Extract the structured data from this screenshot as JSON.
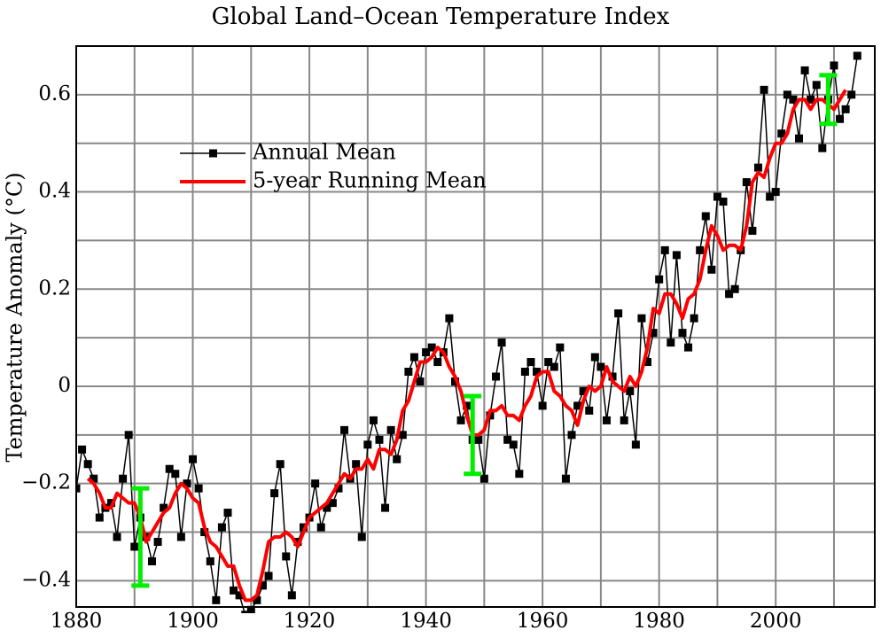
{
  "chart_data": {
    "type": "line",
    "title": "Global Land–Ocean Temperature Index",
    "ylabel": "Temperature Anomaly (°C)",
    "xlim": [
      1880,
      2017
    ],
    "ylim": [
      -0.454,
      0.7
    ],
    "xticks": [
      1880,
      {
        "value": 1890,
        "label": null
      },
      1900,
      {
        "value": 1910,
        "label": null
      },
      1920,
      {
        "value": 1930,
        "label": null
      },
      1940,
      {
        "value": 1950,
        "label": null
      },
      1960,
      {
        "value": 1970,
        "label": null
      },
      1980,
      {
        "value": 1990,
        "label": null
      },
      2000,
      {
        "value": 2010,
        "label": null
      }
    ],
    "yticks": [
      {
        "value": -0.4,
        "label": "−0.4"
      },
      {
        "value": -0.3,
        "label": null
      },
      {
        "value": -0.2,
        "label": "−0.2"
      },
      {
        "value": -0.1,
        "label": null
      },
      0,
      {
        "value": 0.1,
        "label": null
      },
      0.2,
      {
        "value": 0.3,
        "label": null
      },
      0.4,
      {
        "value": 0.5,
        "label": null
      },
      0.6
    ],
    "grid": true,
    "legend": "upper left",
    "series": [
      {
        "name": "Annual Mean",
        "color": "#000000",
        "marker": "square",
        "x": [
          1880,
          1881,
          1882,
          1883,
          1884,
          1885,
          1886,
          1887,
          1888,
          1889,
          1890,
          1891,
          1892,
          1893,
          1894,
          1895,
          1896,
          1897,
          1898,
          1899,
          1900,
          1901,
          1902,
          1903,
          1904,
          1905,
          1906,
          1907,
          1908,
          1909,
          1910,
          1911,
          1912,
          1913,
          1914,
          1915,
          1916,
          1917,
          1918,
          1919,
          1920,
          1921,
          1922,
          1923,
          1924,
          1925,
          1926,
          1927,
          1928,
          1929,
          1930,
          1931,
          1932,
          1933,
          1934,
          1935,
          1936,
          1937,
          1938,
          1939,
          1940,
          1941,
          1942,
          1943,
          1944,
          1945,
          1946,
          1947,
          1948,
          1949,
          1950,
          1951,
          1952,
          1953,
          1954,
          1955,
          1956,
          1957,
          1958,
          1959,
          1960,
          1961,
          1962,
          1963,
          1964,
          1965,
          1966,
          1967,
          1968,
          1969,
          1970,
          1971,
          1972,
          1973,
          1974,
          1975,
          1976,
          1977,
          1978,
          1979,
          1980,
          1981,
          1982,
          1983,
          1984,
          1985,
          1986,
          1987,
          1988,
          1989,
          1990,
          1991,
          1992,
          1993,
          1994,
          1995,
          1996,
          1997,
          1998,
          1999,
          2000,
          2001,
          2002,
          2003,
          2004,
          2005,
          2006,
          2007,
          2008,
          2009,
          2010,
          2011,
          2012,
          2013,
          2014
        ],
        "values": [
          -0.21,
          -0.13,
          -0.16,
          -0.19,
          -0.27,
          -0.25,
          -0.24,
          -0.31,
          -0.19,
          -0.1,
          -0.33,
          -0.27,
          -0.31,
          -0.36,
          -0.32,
          -0.25,
          -0.17,
          -0.18,
          -0.31,
          -0.2,
          -0.15,
          -0.21,
          -0.3,
          -0.36,
          -0.44,
          -0.29,
          -0.26,
          -0.42,
          -0.43,
          -0.47,
          -0.46,
          -0.44,
          -0.41,
          -0.39,
          -0.22,
          -0.16,
          -0.35,
          -0.43,
          -0.32,
          -0.29,
          -0.27,
          -0.2,
          -0.29,
          -0.25,
          -0.24,
          -0.21,
          -0.09,
          -0.19,
          -0.16,
          -0.31,
          -0.12,
          -0.07,
          -0.11,
          -0.25,
          -0.09,
          -0.15,
          -0.1,
          0.03,
          0.06,
          0.01,
          0.07,
          0.08,
          0.05,
          0.07,
          0.14,
          0.01,
          -0.07,
          -0.04,
          -0.11,
          -0.11,
          -0.19,
          -0.06,
          0.02,
          0.09,
          -0.11,
          -0.12,
          -0.18,
          0.03,
          0.05,
          0.03,
          -0.04,
          0.05,
          0.04,
          0.08,
          -0.19,
          -0.1,
          -0.04,
          -0.01,
          -0.05,
          0.06,
          0.04,
          -0.07,
          0.02,
          0.15,
          -0.07,
          -0.01,
          -0.12,
          0.14,
          0.05,
          0.11,
          0.22,
          0.28,
          0.09,
          0.27,
          0.11,
          0.08,
          0.14,
          0.28,
          0.35,
          0.24,
          0.39,
          0.38,
          0.19,
          0.2,
          0.28,
          0.42,
          0.32,
          0.45,
          0.61,
          0.39,
          0.4,
          0.52,
          0.6,
          0.59,
          0.51,
          0.65,
          0.59,
          0.62,
          0.49,
          0.59,
          0.66,
          0.55,
          0.57,
          0.6,
          0.68
        ]
      },
      {
        "name": "5-year Running Mean",
        "color": "#ff0000",
        "marker": "none",
        "x": [
          1882,
          1883,
          1884,
          1885,
          1886,
          1887,
          1888,
          1889,
          1890,
          1891,
          1892,
          1893,
          1894,
          1895,
          1896,
          1897,
          1898,
          1899,
          1900,
          1901,
          1902,
          1903,
          1904,
          1905,
          1906,
          1907,
          1908,
          1909,
          1910,
          1911,
          1912,
          1913,
          1914,
          1915,
          1916,
          1917,
          1918,
          1919,
          1920,
          1921,
          1922,
          1923,
          1924,
          1925,
          1926,
          1927,
          1928,
          1929,
          1930,
          1931,
          1932,
          1933,
          1934,
          1935,
          1936,
          1937,
          1938,
          1939,
          1940,
          1941,
          1942,
          1943,
          1944,
          1945,
          1946,
          1947,
          1948,
          1949,
          1950,
          1951,
          1952,
          1953,
          1954,
          1955,
          1956,
          1957,
          1958,
          1959,
          1960,
          1961,
          1962,
          1963,
          1964,
          1965,
          1966,
          1967,
          1968,
          1969,
          1970,
          1971,
          1972,
          1973,
          1974,
          1975,
          1976,
          1977,
          1978,
          1979,
          1980,
          1981,
          1982,
          1983,
          1984,
          1985,
          1986,
          1987,
          1988,
          1989,
          1990,
          1991,
          1992,
          1993,
          1994,
          1995,
          1996,
          1997,
          1998,
          1999,
          2000,
          2001,
          2002,
          2003,
          2004,
          2005,
          2006,
          2007,
          2008,
          2009,
          2010,
          2011,
          2012
        ],
        "values": [
          -0.19,
          -0.2,
          -0.22,
          -0.25,
          -0.25,
          -0.22,
          -0.23,
          -0.24,
          -0.24,
          -0.27,
          -0.32,
          -0.3,
          -0.28,
          -0.26,
          -0.25,
          -0.22,
          -0.2,
          -0.21,
          -0.23,
          -0.24,
          -0.29,
          -0.32,
          -0.33,
          -0.35,
          -0.37,
          -0.37,
          -0.41,
          -0.44,
          -0.44,
          -0.43,
          -0.38,
          -0.32,
          -0.31,
          -0.31,
          -0.3,
          -0.31,
          -0.33,
          -0.3,
          -0.27,
          -0.26,
          -0.25,
          -0.24,
          -0.22,
          -0.2,
          -0.18,
          -0.19,
          -0.17,
          -0.17,
          -0.15,
          -0.17,
          -0.13,
          -0.13,
          -0.14,
          -0.11,
          -0.05,
          -0.03,
          0.01,
          0.05,
          0.05,
          0.06,
          0.08,
          0.07,
          0.04,
          0.02,
          -0.01,
          -0.06,
          -0.1,
          -0.1,
          -0.09,
          -0.05,
          -0.05,
          -0.04,
          -0.06,
          -0.06,
          -0.07,
          -0.04,
          -0.02,
          0.02,
          0.03,
          0.03,
          -0.01,
          -0.02,
          -0.04,
          -0.05,
          -0.08,
          -0.03,
          0.0,
          -0.01,
          0.0,
          0.04,
          0.01,
          0.0,
          -0.01,
          0.02,
          0.0,
          0.03,
          0.08,
          0.16,
          0.15,
          0.19,
          0.19,
          0.17,
          0.14,
          0.18,
          0.19,
          0.22,
          0.28,
          0.33,
          0.31,
          0.28,
          0.29,
          0.29,
          0.28,
          0.33,
          0.42,
          0.44,
          0.43,
          0.47,
          0.5,
          0.5,
          0.52,
          0.57,
          0.59,
          0.59,
          0.57,
          0.59,
          0.59,
          0.58,
          0.57,
          0.59,
          0.61
        ]
      }
    ],
    "error_bars": {
      "color": "#00ee00",
      "x": [
        1891,
        1948,
        2009
      ],
      "values": [
        -0.31,
        -0.1,
        0.59
      ],
      "errors": [
        0.1,
        0.08,
        0.05
      ]
    }
  }
}
